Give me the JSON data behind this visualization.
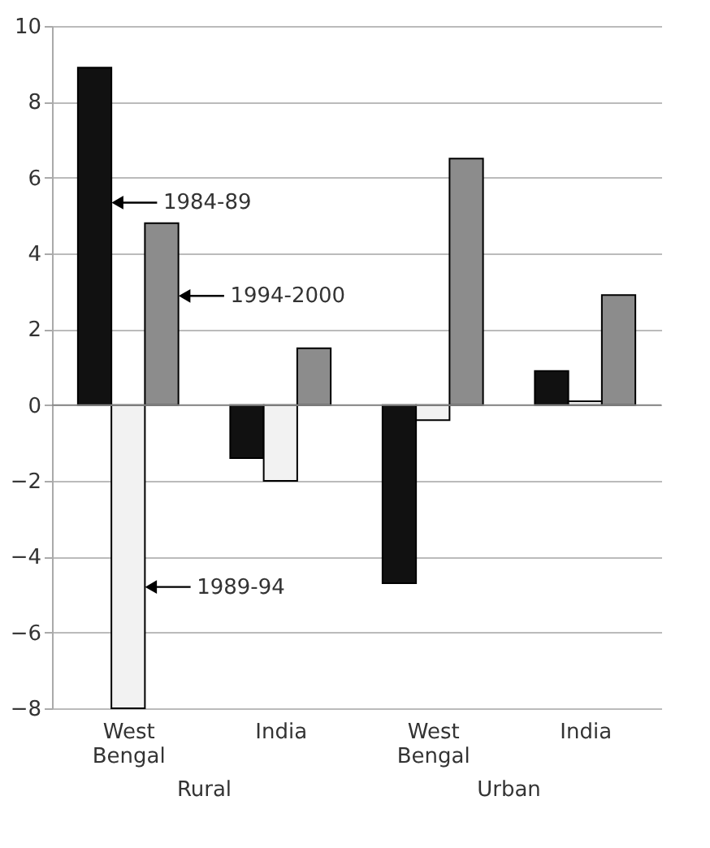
{
  "chart_data": {
    "type": "bar",
    "categories": [
      "West Bengal",
      "India",
      "West Bengal",
      "India"
    ],
    "series": [
      {
        "name": "1984-89",
        "color": "#111111",
        "values": [
          8.9,
          -1.4,
          -4.7,
          0.9
        ]
      },
      {
        "name": "1989-94",
        "color": "#f2f2f2",
        "values": [
          -8.0,
          -2.0,
          -0.4,
          0.1
        ]
      },
      {
        "name": "1994-2000",
        "color": "#8c8c8c",
        "values": [
          4.8,
          1.5,
          6.5,
          2.9
        ]
      }
    ],
    "ylim": [
      -8,
      10
    ],
    "yticks": [
      -8,
      -6,
      -4,
      -2,
      0,
      2,
      4,
      6,
      8,
      10
    ],
    "grid": "y",
    "legend": "bottom left",
    "annotations": [
      "Rural",
      "Urban"
    ]
  }
}
